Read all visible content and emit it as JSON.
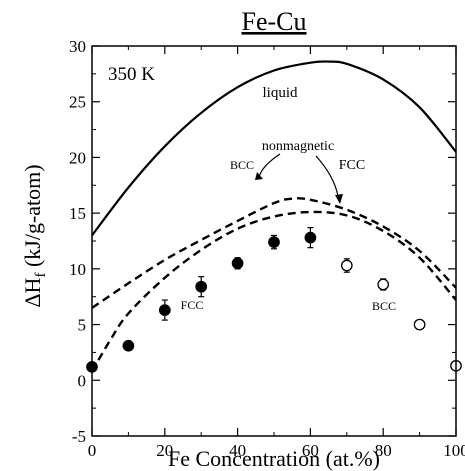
{
  "chart_data": {
    "type": "line",
    "title": "Fe-Cu",
    "xlabel": "Fe Concentration (at.%)",
    "ylabel": "ΔH",
    "ylabel_sub": "f",
    "ylabel_units": " (kJ/g-atom)",
    "temperature_label": "350 K",
    "xlim": [
      0,
      100
    ],
    "ylim": [
      -5,
      30
    ],
    "x_ticks": [
      0,
      20,
      40,
      60,
      80,
      100
    ],
    "y_ticks": [
      -5,
      0,
      5,
      10,
      15,
      20,
      25,
      30
    ],
    "grid": false,
    "annotations": {
      "liquid": "liquid",
      "nonmagnetic": "nonmagnetic",
      "bcc_curve": "BCC",
      "fcc_curve": "FCC",
      "fcc_points": "FCC",
      "bcc_points": "BCC"
    },
    "series": [
      {
        "name": "liquid",
        "style": "solid",
        "x": [
          0,
          10,
          20,
          30,
          40,
          50,
          60,
          65,
          70,
          80,
          90,
          100
        ],
        "y": [
          13.0,
          17.3,
          21.0,
          24.0,
          26.3,
          27.8,
          28.5,
          28.6,
          28.4,
          27.0,
          24.5,
          20.5
        ]
      },
      {
        "name": "nonmagnetic FCC",
        "style": "dashed",
        "x": [
          0,
          10,
          20,
          30,
          40,
          50,
          55,
          60,
          70,
          80,
          90,
          100
        ],
        "y": [
          6.5,
          8.7,
          10.8,
          12.6,
          14.3,
          15.9,
          16.3,
          16.2,
          15.3,
          13.8,
          11.6,
          8.3
        ]
      },
      {
        "name": "nonmagnetic BCC",
        "style": "dashed",
        "x": [
          0,
          5,
          10,
          20,
          30,
          40,
          50,
          60,
          70,
          80,
          90,
          100
        ],
        "y": [
          0.8,
          3.6,
          6.0,
          9.2,
          11.7,
          13.6,
          14.7,
          15.1,
          14.8,
          13.4,
          11.0,
          7.2
        ]
      },
      {
        "name": "FCC measured",
        "style": "filled-circles",
        "x": [
          0,
          10,
          20,
          30,
          40,
          50,
          60
        ],
        "y": [
          1.2,
          3.1,
          6.3,
          8.4,
          10.5,
          12.4,
          12.8
        ],
        "error": [
          0.4,
          0.4,
          0.9,
          0.9,
          0.5,
          0.6,
          0.9
        ]
      },
      {
        "name": "BCC measured",
        "style": "open-circles",
        "x": [
          70,
          80,
          90,
          100
        ],
        "y": [
          10.3,
          8.6,
          5.0,
          1.3
        ],
        "error": [
          0.6,
          0.5,
          0.4,
          0.4
        ]
      }
    ]
  }
}
